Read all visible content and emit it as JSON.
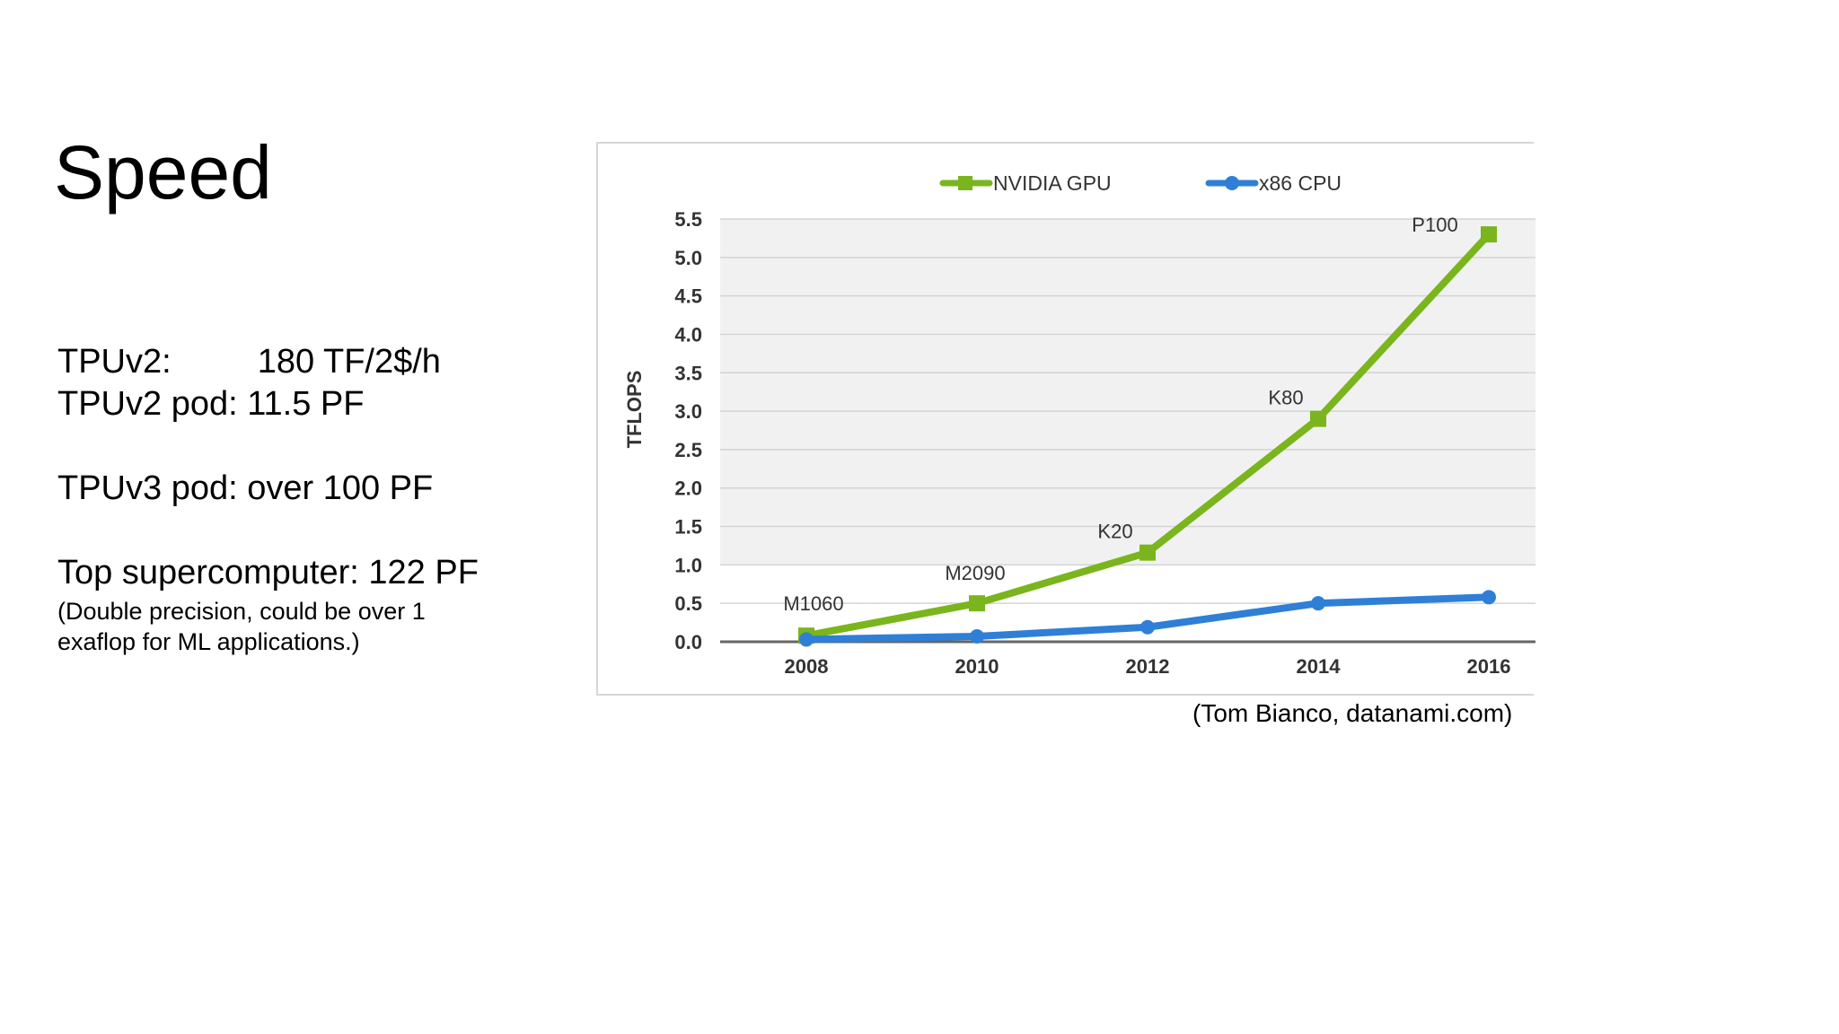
{
  "slide": {
    "title": "Speed",
    "stats": {
      "tpuv2_label": "TPUv2:",
      "tpuv2_value": "180 TF/2$/h",
      "tpuv2_pod": "TPUv2 pod: 11.5 PF",
      "tpuv3_pod": "TPUv3 pod: over 100 PF",
      "top_super": "Top supercomputer: 122 PF",
      "note": "(Double precision, could be over 1 exaflop for ML applications.)"
    },
    "credit": "(Tom Bianco, datanami.com)"
  },
  "chart_data": {
    "type": "line",
    "title": "",
    "xlabel": "",
    "ylabel": "TFLOPS",
    "x": [
      "2008",
      "2010",
      "2012",
      "2014",
      "2016"
    ],
    "ylim": [
      0,
      5.5
    ],
    "yticks": [
      "0.0",
      "0.5",
      "1.0",
      "1.5",
      "2.0",
      "2.5",
      "3.0",
      "3.5",
      "4.0",
      "4.5",
      "5.0",
      "5.5"
    ],
    "grid": true,
    "legend_position": "top",
    "series": [
      {
        "name": "NVIDIA GPU",
        "color": "#7ab51d",
        "marker": "square",
        "values": [
          0.08,
          0.5,
          1.16,
          2.9,
          5.3
        ],
        "point_labels": [
          "M1060",
          "M2090",
          "K20",
          "K80",
          "P100"
        ]
      },
      {
        "name": "x86 CPU",
        "color": "#2f7fd6",
        "marker": "circle",
        "values": [
          0.03,
          0.07,
          0.19,
          0.5,
          0.58
        ]
      }
    ]
  }
}
